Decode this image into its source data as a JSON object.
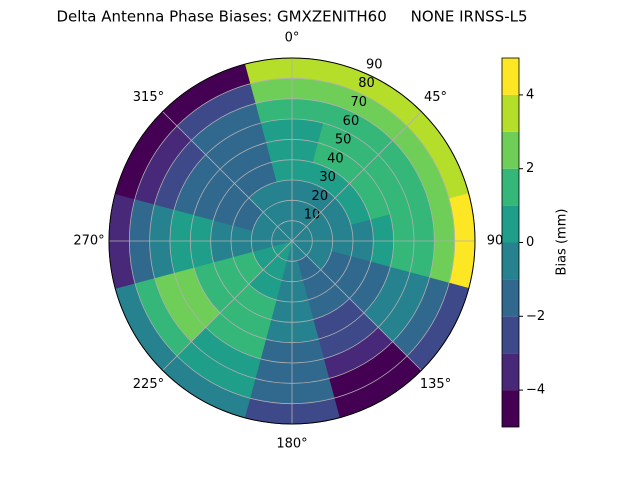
{
  "chart_data": {
    "type": "polar_contour",
    "title": "Delta Antenna Phase Biases: GMXZENITH60     NONE IRNSS-L5",
    "colorbar_label": "Bias (mm)",
    "azimuth": [
      0,
      30,
      60,
      90,
      120,
      150,
      180,
      210,
      240,
      270,
      300,
      330
    ],
    "r_bins": [
      0,
      10,
      20,
      30,
      40,
      50,
      60,
      70,
      80,
      90
    ],
    "values": [
      [
        -0.5,
        -0.5,
        -0.5,
        0.5,
        0.5,
        0.5,
        1.5,
        2.5,
        3.5
      ],
      [
        -0.5,
        -0.5,
        -0.5,
        0.5,
        1.5,
        1.5,
        1.5,
        2.5,
        3.5
      ],
      [
        -0.5,
        -0.5,
        -0.5,
        0.5,
        1.5,
        1.5,
        1.5,
        2.5,
        3.5
      ],
      [
        -0.5,
        -0.5,
        -0.5,
        -0.5,
        0.5,
        1.5,
        1.5,
        2.5,
        4.5
      ],
      [
        -0.5,
        -0.5,
        -1.5,
        -1.5,
        -1.5,
        -0.5,
        -0.5,
        -1.5,
        -2.5
      ],
      [
        -0.5,
        -1.5,
        -1.5,
        -1.5,
        -2.5,
        -2.5,
        -3.5,
        -4.5,
        -4.5
      ],
      [
        -0.5,
        -0.5,
        -0.5,
        -0.5,
        -0.5,
        -1.5,
        -1.5,
        -1.5,
        -2.5
      ],
      [
        0.5,
        0.5,
        0.5,
        1.5,
        1.5,
        1.5,
        0.5,
        0.5,
        -0.5
      ],
      [
        0.5,
        0.5,
        1.5,
        1.5,
        1.5,
        2.5,
        2.5,
        1.5,
        -0.5
      ],
      [
        -0.5,
        -0.5,
        -0.5,
        -0.5,
        0.5,
        0.5,
        -0.5,
        -1.5,
        -3.5
      ],
      [
        -0.5,
        -0.5,
        -1.5,
        -1.5,
        -1.5,
        -1.5,
        -2.5,
        -3.5,
        -4.5
      ],
      [
        -0.5,
        -0.5,
        -0.5,
        -1.5,
        -1.5,
        -1.5,
        -1.5,
        -2.5,
        -4.5
      ]
    ],
    "levels": [
      -5,
      -4,
      -3,
      -2,
      -1,
      0,
      1,
      2,
      3,
      4,
      5
    ],
    "colors": [
      "#440154",
      "#482878",
      "#3e4989",
      "#31688e",
      "#26828e",
      "#1f9e89",
      "#35b779",
      "#6ece58",
      "#b5de2b",
      "#fde725"
    ],
    "rlim": [
      0,
      90
    ],
    "rticks": [
      10,
      20,
      30,
      40,
      50,
      60,
      70,
      80,
      90
    ],
    "thetaticks": [
      {
        "value": 0,
        "label": "0°"
      },
      {
        "value": 45,
        "label": "45°"
      },
      90,
      {
        "value": 135,
        "label": "135°"
      },
      {
        "value": 180,
        "label": "180°"
      },
      {
        "value": 225,
        "label": "225°"
      },
      {
        "value": 270,
        "label": "270°"
      },
      {
        "value": 315,
        "label": "315°"
      }
    ],
    "clim": [
      -5,
      5
    ],
    "cticks": [
      {
        "value": -4,
        "label": "−4"
      },
      {
        "value": -2,
        "label": "−2"
      },
      0,
      2,
      4
    ],
    "grid": true
  }
}
